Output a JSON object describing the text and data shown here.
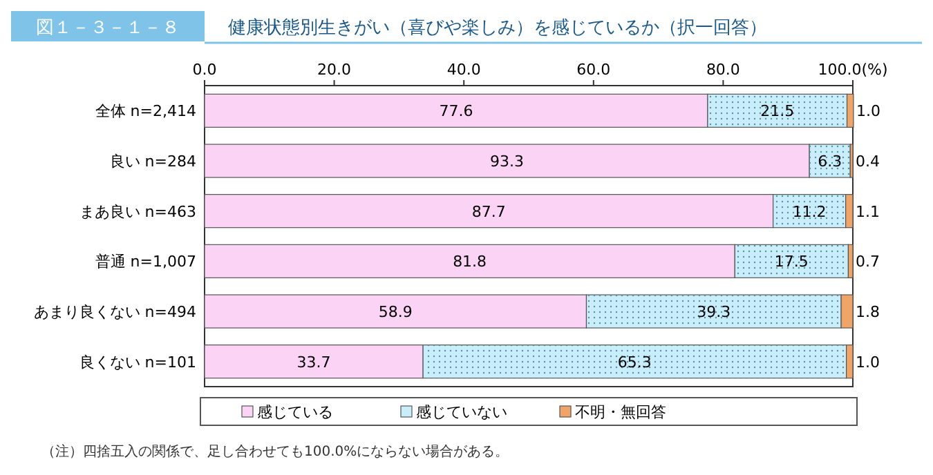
{
  "chart_data": {
    "type": "bar",
    "orientation": "horizontal",
    "stacked": true,
    "title": "健康状態別生きがい（喜びや楽しみ）を感じているか（択一回答）",
    "annotations": [
      "図１－３－１－８",
      "（注）四捨五入の関係で、足し合わせても100.0%にならない場合がある。"
    ],
    "categories": [
      "全体 n=2,414",
      "良い n=284",
      "まあ良い n=463",
      "普通 n=1,007",
      "あまり良くない n=494",
      "良くない n=101"
    ],
    "series": [
      {
        "name": "感じている",
        "color": "#fbd3f5",
        "values": [
          77.6,
          93.3,
          87.7,
          81.8,
          58.9,
          33.7
        ],
        "value_labels": [
          "77.6",
          "93.3",
          "87.7",
          "81.8",
          "58.9",
          "33.7"
        ]
      },
      {
        "name": "感じていない",
        "color": "#c9eefa",
        "values": [
          21.5,
          6.3,
          11.2,
          17.5,
          39.3,
          65.3
        ],
        "value_labels": [
          "21.5",
          "6.3",
          "11.2",
          "17.5",
          "39.3",
          "65.3"
        ]
      },
      {
        "name": "不明・無回答",
        "color": "#f0a468",
        "values": [
          1.0,
          0.4,
          1.1,
          0.7,
          1.8,
          1.0
        ],
        "value_labels": [
          "1.0",
          "0.4",
          "1.1",
          "0.7",
          "1.8",
          "1.0"
        ]
      }
    ],
    "xlim": [
      0,
      100
    ],
    "xticks": [
      {
        "value": 0,
        "label": "0.0"
      },
      {
        "value": 20,
        "label": "20.0"
      },
      {
        "value": 40,
        "label": "40.0"
      },
      {
        "value": 60,
        "label": "60.0"
      },
      {
        "value": 80,
        "label": "80.0"
      },
      {
        "value": 100,
        "label": "100.0(%)"
      }
    ],
    "legend": "bottom",
    "grid": false
  }
}
